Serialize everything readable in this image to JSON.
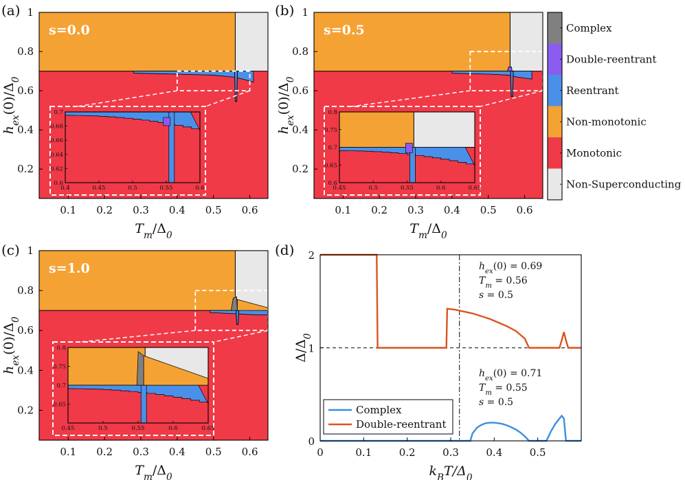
{
  "colors": {
    "complex": "#808080",
    "double_reentrant": "#8a5cf0",
    "reentrant": "#4a90e8",
    "non_monotonic": "#f5a234",
    "monotonic": "#f03a48",
    "non_superconducting": "#e8e8e8",
    "curve_complex": "#3a8ee0",
    "curve_double": "#d9541e"
  },
  "colorbar": {
    "labels": [
      "Complex",
      "Double-reentrant",
      "Reentrant",
      "Non-monotonic",
      "Monotonic",
      "Non-Superconducting"
    ]
  },
  "chart_data": [
    {
      "type": "heatmap",
      "panel": "(a)",
      "tag": "s=0.0",
      "xlabel": "T_m/Δ_0",
      "ylabel": "h_ex(0)/Δ_0",
      "xlim": [
        0.02,
        0.65
      ],
      "ylim": [
        0.05,
        1.0
      ],
      "xticks": [
        "0.1",
        "0.2",
        "0.3",
        "0.4",
        "0.5",
        "0.6"
      ],
      "yticks": [
        "0.2",
        "0.4",
        "0.6",
        "0.8",
        "1"
      ],
      "boundary_h": 0.7,
      "nonsc_tm": 0.56,
      "reentrant_band": [
        [
          0.28,
          0.7
        ],
        [
          0.4,
          0.695
        ],
        [
          0.5,
          0.69
        ],
        [
          0.555,
          0.68
        ],
        [
          0.58,
          0.67
        ],
        [
          0.61,
          0.655
        ]
      ],
      "reentrant_spike": {
        "tm": 0.562,
        "h_min": 0.545
      },
      "inset": {
        "xlim": [
          0.4,
          0.6
        ],
        "ylim": [
          0.6,
          0.7
        ],
        "xticks": [
          "0.4",
          "0.45",
          "0.5",
          "0.55",
          "0.6"
        ],
        "yticks": [
          "0.6",
          "0.62",
          "0.64",
          "0.66",
          "0.68",
          "0.7"
        ]
      }
    },
    {
      "type": "heatmap",
      "panel": "(b)",
      "tag": "s=0.5",
      "xlabel": "T_m/Δ_0",
      "ylabel": "h_ex(0)/Δ_0",
      "xlim": [
        0.02,
        0.65
      ],
      "ylim": [
        0.05,
        1.0
      ],
      "xticks": [
        "0.1",
        "0.2",
        "0.3",
        "0.4",
        "0.5",
        "0.6"
      ],
      "yticks": [
        "0.2",
        "0.4",
        "0.6",
        "0.8",
        "1"
      ],
      "boundary_h": 0.7,
      "nonsc_tm": 0.56,
      "reentrant_band": [
        [
          0.4,
          0.7
        ],
        [
          0.5,
          0.695
        ],
        [
          0.555,
          0.69
        ],
        [
          0.58,
          0.68
        ],
        [
          0.62,
          0.67
        ]
      ],
      "reentrant_spike": {
        "tm": 0.565,
        "h_min": 0.57
      },
      "inset": {
        "xlim": [
          0.45,
          0.65
        ],
        "ylim": [
          0.6,
          0.8
        ],
        "xticks": [
          "0.45",
          "0.5",
          "0.55",
          "0.6",
          "0.65"
        ],
        "yticks": [
          "0.6",
          "0.65",
          "0.7",
          "0.75",
          "0.8"
        ]
      }
    },
    {
      "type": "heatmap",
      "panel": "(c)",
      "tag": "s=1.0",
      "xlabel": "T_m/Δ_0",
      "ylabel": "h_ex(0)/Δ_0",
      "xlim": [
        0.02,
        0.65
      ],
      "ylim": [
        0.05,
        1.0
      ],
      "xticks": [
        "0.1",
        "0.2",
        "0.3",
        "0.4",
        "0.5",
        "0.6"
      ],
      "yticks": [
        "0.2",
        "0.4",
        "0.6",
        "0.8",
        "1"
      ],
      "boundary_h": 0.7,
      "nonsc_tm": 0.56,
      "reentrant_band": [
        [
          0.49,
          0.7
        ],
        [
          0.55,
          0.695
        ],
        [
          0.6,
          0.69
        ],
        [
          0.65,
          0.688
        ]
      ],
      "reentrant_spike": {
        "tm": 0.566,
        "h_min": 0.63
      },
      "inset": {
        "xlim": [
          0.45,
          0.65
        ],
        "ylim": [
          0.6,
          0.8
        ],
        "xticks": [
          "0.45",
          "0.5",
          "0.55",
          "0.6",
          "0.65"
        ],
        "yticks": [
          "0.65",
          "0.7",
          "0.75",
          "0.8"
        ]
      }
    },
    {
      "type": "line",
      "panel": "(d)",
      "xlabel": "k_B T/Δ_0",
      "ylabel": "Δ/Δ_0",
      "xlim": [
        0,
        0.6
      ],
      "ylim": [
        0,
        2
      ],
      "xticks": [
        "0",
        "0.1",
        "0.2",
        "0.3",
        "0.4",
        "0.5"
      ],
      "yticks": [
        "0",
        "1",
        "2"
      ],
      "hline": 1,
      "vline": 0.32,
      "annotations": [
        [
          "h_ex(0) = 0.69",
          "T_m = 0.56",
          "s = 0.5"
        ],
        [
          "h_ex(0) = 0.71",
          "T_m = 0.55",
          "s = 0.5"
        ]
      ],
      "series": [
        {
          "name": "Complex",
          "x": [
            0,
            0.345,
            0.35,
            0.36,
            0.37,
            0.38,
            0.39,
            0.4,
            0.41,
            0.42,
            0.43,
            0.44,
            0.45,
            0.46,
            0.47,
            0.48,
            0.52,
            0.53,
            0.54,
            0.55,
            0.555,
            0.56,
            0.565,
            0.6
          ],
          "y": [
            0,
            0,
            0.08,
            0.14,
            0.17,
            0.19,
            0.195,
            0.195,
            0.19,
            0.18,
            0.165,
            0.145,
            0.12,
            0.09,
            0.05,
            0,
            0,
            0.1,
            0.18,
            0.24,
            0.27,
            0.24,
            0,
            0
          ]
        },
        {
          "name": "Double-reentrant",
          "x": [
            0,
            0.13,
            0.132,
            0.29,
            0.292,
            0.31,
            0.33,
            0.35,
            0.37,
            0.39,
            0.41,
            0.43,
            0.45,
            0.47,
            0.48,
            0.55,
            0.555,
            0.56,
            0.565,
            0.57,
            0.6
          ],
          "y": [
            2,
            2,
            1,
            1,
            1.42,
            1.41,
            1.39,
            1.37,
            1.34,
            1.31,
            1.27,
            1.23,
            1.18,
            1.1,
            1.0,
            1.0,
            1.08,
            1.17,
            1.08,
            1.0,
            1.0
          ]
        }
      ]
    }
  ]
}
